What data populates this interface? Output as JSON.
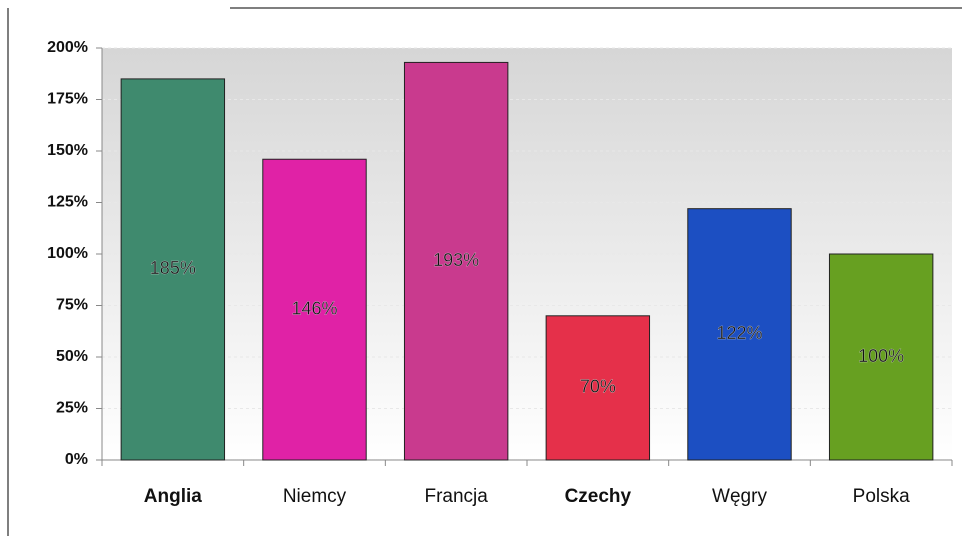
{
  "chart_data": {
    "type": "bar",
    "categories": [
      "Anglia",
      "Niemcy",
      "Francja",
      "Czechy",
      "Węgry",
      "Polska"
    ],
    "category_bold": [
      true,
      false,
      false,
      true,
      false,
      false
    ],
    "values": [
      185,
      146,
      193,
      70,
      122,
      100
    ],
    "value_labels": [
      "185%",
      "146%",
      "193%",
      "70%",
      "122%",
      "100%"
    ],
    "colors": [
      "#3f8a6e",
      "#e022a6",
      "#c93a8e",
      "#e5304a",
      "#1c4fc2",
      "#67a021"
    ],
    "ylim": [
      0,
      200
    ],
    "yticks": [
      {
        "value": 0,
        "label": "0%"
      },
      {
        "value": 25,
        "label": "25%"
      },
      {
        "value": 50,
        "label": "50%"
      },
      {
        "value": 75,
        "label": "75%"
      },
      {
        "value": 100,
        "label": "100%"
      },
      {
        "value": 125,
        "label": "125%"
      },
      {
        "value": 150,
        "label": "150%"
      },
      {
        "value": 175,
        "label": "175%"
      },
      {
        "value": 200,
        "label": "200%"
      }
    ],
    "grid": true
  }
}
